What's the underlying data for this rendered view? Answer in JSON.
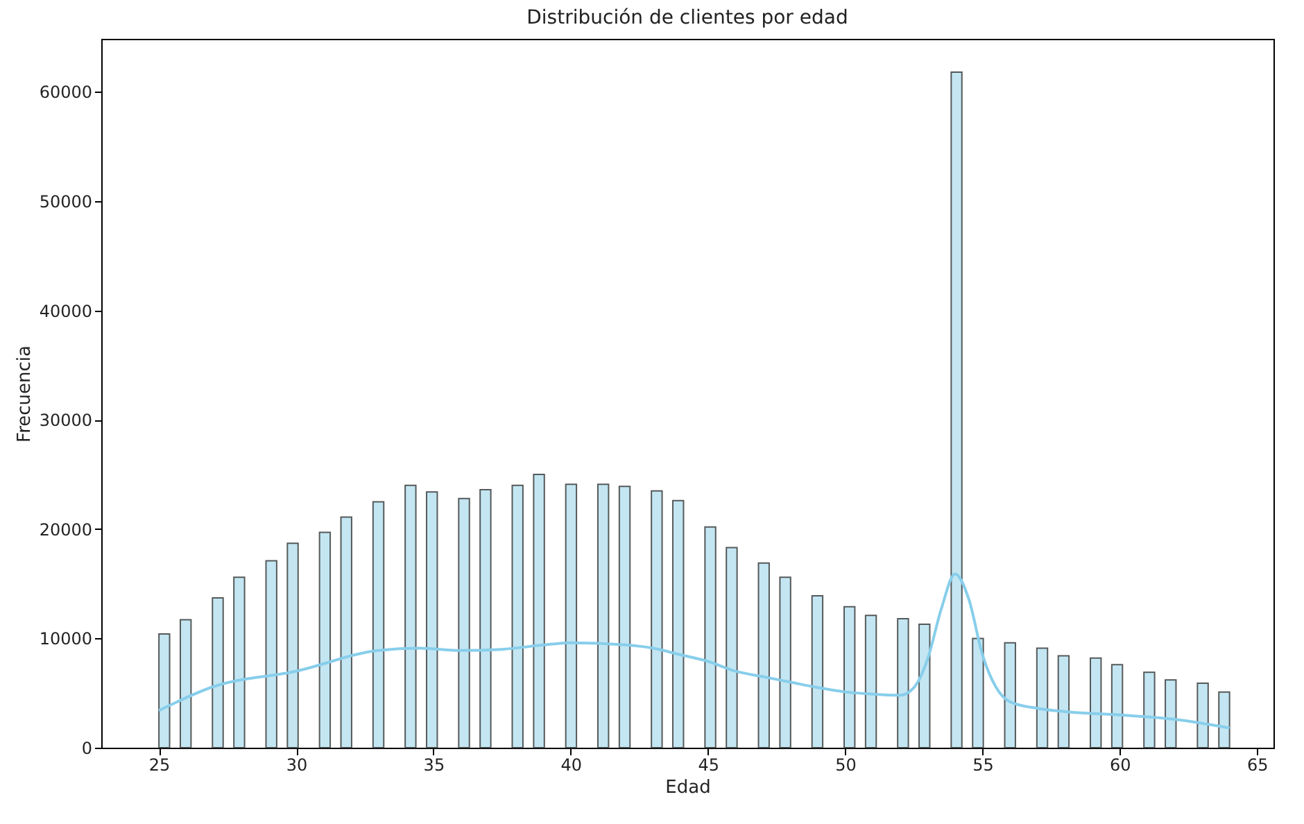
{
  "chart_data": {
    "type": "histogram",
    "title": "Distribución de clientes por edad",
    "xlabel": "Edad",
    "ylabel": "Frecuencia",
    "bins": [
      25,
      25.39,
      25.78,
      26.17,
      26.56,
      26.95,
      27.34,
      27.73,
      28.12,
      28.51,
      28.9,
      29.29,
      29.68,
      30.07,
      30.46,
      30.85,
      31.24,
      31.63,
      32.02,
      32.41,
      32.8,
      33.19,
      33.58,
      33.97,
      34.36,
      34.75,
      35.14,
      35.53,
      35.92,
      36.31,
      36.7,
      37.09,
      37.48,
      37.87,
      38.26,
      38.65,
      39.04,
      39.43,
      39.82,
      40.21,
      40.6,
      40.99,
      41.38,
      41.77,
      42.16,
      42.55,
      42.94,
      43.33,
      43.72,
      44.11,
      44.5,
      44.89,
      45.28,
      45.67,
      46.06,
      46.45,
      46.84,
      47.23,
      47.62,
      48.01,
      48.4,
      48.79,
      49.18,
      49.57,
      49.96,
      50.35,
      50.74,
      51.13,
      51.52,
      51.91,
      52.3,
      52.69,
      53.08,
      53.47,
      53.86,
      54.25,
      54.64,
      55.03,
      55.42,
      55.81,
      56.2,
      56.59,
      56.98,
      57.37,
      57.76,
      58.15,
      58.54,
      58.93,
      59.32,
      59.71,
      60.1,
      60.49,
      60.88,
      61.27,
      61.66,
      62.05,
      62.44,
      62.83,
      63.22,
      63.61,
      64
    ],
    "series": [
      {
        "color": "#c3e6f2",
        "values": [
          10400,
          0,
          11700,
          0,
          0,
          13700,
          0,
          15600,
          0,
          0,
          17100,
          0,
          18700,
          0,
          0,
          19700,
          0,
          21100,
          0,
          0,
          22500,
          0,
          0,
          24000,
          0,
          23400,
          0,
          0,
          22800,
          0,
          23600,
          0,
          0,
          24000,
          0,
          25000,
          0,
          0,
          24100,
          0,
          0,
          24100,
          0,
          23900,
          0,
          0,
          23500,
          0,
          22600,
          0,
          0,
          20200,
          0,
          18300,
          0,
          0,
          16900,
          0,
          15600,
          0,
          0,
          13900,
          0,
          0,
          12900,
          0,
          12100,
          0,
          0,
          11800,
          0,
          11300,
          0,
          0,
          61800,
          0,
          10000,
          0,
          0,
          9600,
          0,
          0,
          9100,
          0,
          8400,
          0,
          0,
          8200,
          0,
          7600,
          0,
          0,
          6900,
          0,
          6200,
          0,
          0,
          5900,
          0,
          5100
        ]
      },
      {
        "type": "line",
        "color": "#87ceeb",
        "x": [
          25,
          27,
          30,
          33,
          34.5,
          36,
          37.5,
          39,
          40,
          42,
          43,
          44,
          45,
          46,
          47,
          48,
          49,
          50,
          51,
          52,
          52.5,
          53,
          53.5,
          54,
          54.5,
          55,
          55.5,
          56,
          57,
          58,
          60,
          62,
          64
        ],
        "values": [
          3400,
          5600,
          7000,
          8900,
          9100,
          8900,
          9000,
          9400,
          9600,
          9400,
          9100,
          8500,
          7900,
          7000,
          6500,
          6000,
          5500,
          5100,
          4900,
          4800,
          5500,
          8100,
          12700,
          15900,
          13600,
          8500,
          5500,
          4200,
          3600,
          3300,
          3000,
          2600,
          1800
        ]
      }
    ],
    "xlim": [
      22.9,
      65.6
    ],
    "xticks": [
      25,
      30,
      35,
      40,
      45,
      50,
      55,
      60,
      65
    ],
    "ylim": [
      0,
      64850
    ],
    "yticks": [
      0,
      10000,
      20000,
      30000,
      40000,
      50000,
      60000
    ],
    "grid": false,
    "legend": false
  }
}
